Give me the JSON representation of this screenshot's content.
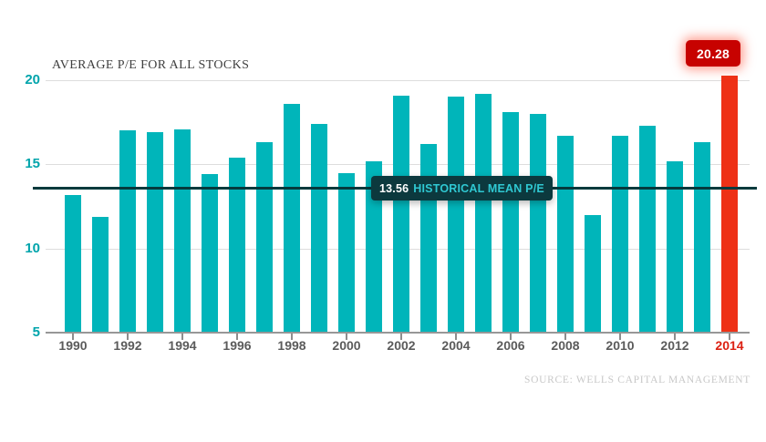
{
  "chart": {
    "title": "AVERAGE P/E FOR ALL STOCKS",
    "source_note": "SOURCE: WELLS CAPITAL MANAGEMENT",
    "mean_label": {
      "value_text": "13.56",
      "text": "HISTORICAL MEAN P/E"
    },
    "highlight_badge": "20.28"
  },
  "chart_data": {
    "type": "bar",
    "title": "AVERAGE P/E FOR ALL STOCKS",
    "categories": [
      "1990",
      "1991",
      "1992",
      "1993",
      "1994",
      "1995",
      "1996",
      "1997",
      "1998",
      "1999",
      "2000",
      "2001",
      "2002",
      "2003",
      "2004",
      "2005",
      "2006",
      "2007",
      "2008",
      "2009",
      "2010",
      "2011",
      "2012",
      "2013",
      "2014"
    ],
    "values": [
      13.2,
      11.9,
      17.0,
      16.9,
      17.1,
      14.4,
      15.4,
      16.3,
      18.6,
      17.4,
      14.5,
      15.2,
      19.1,
      16.2,
      19.0,
      19.2,
      18.1,
      18.0,
      16.7,
      12.0,
      16.7,
      17.3,
      15.2,
      16.3,
      20.28
    ],
    "xlabel": "",
    "ylabel": "",
    "ylim": [
      5,
      20.5
    ],
    "yticks": [
      5,
      10,
      15,
      20
    ],
    "xtick_labels": [
      "1990",
      "1992",
      "1994",
      "1996",
      "1998",
      "2000",
      "2002",
      "2004",
      "2006",
      "2008",
      "2010",
      "2012",
      "2014"
    ],
    "grid": "horizontal",
    "legend": "none",
    "mean_line": {
      "value": 13.56,
      "label": "HISTORICAL MEAN P/E"
    },
    "highlight": {
      "category": "2014",
      "value": 20.28
    },
    "colors": {
      "bar": "#00b5ba",
      "highlight_bar": "#ee3116",
      "badge_bg": "#c70200",
      "mean_line": "#053a3d",
      "mean_label_bg": "#0c393e",
      "mean_label_text": "#2fc8d2",
      "gridline": "#dddddd",
      "axis_line": "#979797",
      "ytick_label": "#00a4ab",
      "xtick_label": "#5b5b5b",
      "highlight_xtick_label": "#dc2113",
      "title_text": "#3f3f3f",
      "source_text": "#c8c8c8"
    }
  }
}
